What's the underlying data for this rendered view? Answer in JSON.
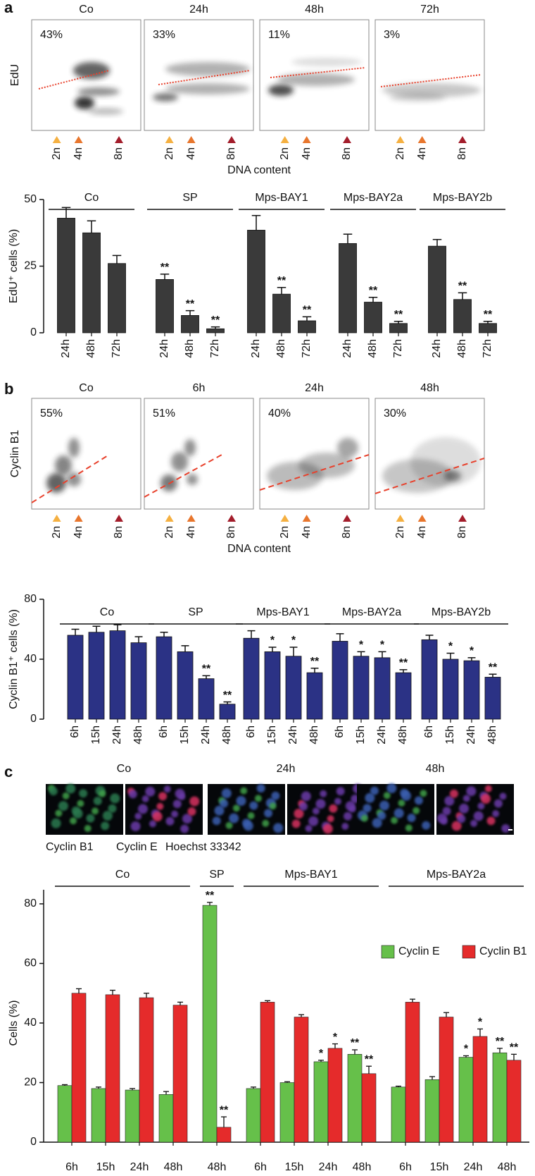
{
  "panel_labels": [
    "a",
    "b",
    "c"
  ],
  "micrographs": {
    "titles": [
      "Co",
      "24h",
      "48h"
    ],
    "legend": [
      {
        "text": "Cyclin B1",
        "color": "#e8262d"
      },
      {
        "text": "Cyclin E",
        "color": "#3aa635"
      },
      {
        "text": "Hoechst 33342",
        "color": "#4a6fd8"
      }
    ]
  },
  "chart_data": [
    {
      "type": "flow",
      "titles": [
        "Co",
        "24h",
        "48h",
        "72h"
      ],
      "annotations": [
        "43%",
        "33%",
        "11%",
        "3%"
      ],
      "ylabel": "EdU",
      "xticks": [
        "2n",
        "4n",
        "8n"
      ],
      "xlabel": "DNA content"
    },
    {
      "type": "bar",
      "ylabel": "EdU⁺ cells (%)",
      "color": "#3a3a3a",
      "ylim": [
        0,
        50
      ],
      "yticks": [
        0,
        25,
        50
      ],
      "groups": [
        {
          "name": "Co",
          "categories": [
            "24h",
            "48h",
            "72h"
          ],
          "values": [
            43,
            37.5,
            26
          ],
          "errors": [
            4,
            4.5,
            3
          ],
          "significance": [
            null,
            null,
            null
          ]
        },
        {
          "name": "SP",
          "categories": [
            "24h",
            "48h",
            "72h"
          ],
          "values": [
            20,
            6.5,
            1.5
          ],
          "errors": [
            2,
            1.8,
            0.7
          ],
          "significance": [
            "**",
            "**",
            "**"
          ]
        },
        {
          "name": "Mps-BAY1",
          "categories": [
            "24h",
            "48h",
            "72h"
          ],
          "values": [
            38.5,
            14.5,
            4.5
          ],
          "errors": [
            5.5,
            2.5,
            1.5
          ],
          "significance": [
            null,
            "**",
            "**"
          ]
        },
        {
          "name": "Mps-BAY2a",
          "categories": [
            "24h",
            "48h",
            "72h"
          ],
          "values": [
            33.5,
            11.5,
            3.5
          ],
          "errors": [
            3.5,
            1.8,
            0.8
          ],
          "significance": [
            null,
            "**",
            "**"
          ]
        },
        {
          "name": "Mps-BAY2b",
          "categories": [
            "24h",
            "48h",
            "72h"
          ],
          "values": [
            32.5,
            12.5,
            3.5
          ],
          "errors": [
            2.5,
            2.5,
            0.8
          ],
          "significance": [
            null,
            "**",
            "**"
          ]
        }
      ]
    },
    {
      "type": "flow",
      "titles": [
        "Co",
        "6h",
        "24h",
        "48h"
      ],
      "annotations": [
        "55%",
        "51%",
        "40%",
        "30%"
      ],
      "ylabel": "Cyclin B1",
      "xticks": [
        "2n",
        "4n",
        "8n"
      ],
      "xlabel": "DNA content"
    },
    {
      "type": "bar",
      "ylabel": "Cyclin B1⁺ cells (%)",
      "color": "#2b3285",
      "ylim": [
        0,
        80
      ],
      "yticks": [
        0,
        40,
        80
      ],
      "groups": [
        {
          "name": "Co",
          "categories": [
            "6h",
            "15h",
            "24h",
            "48h"
          ],
          "values": [
            56,
            58,
            59,
            51
          ],
          "errors": [
            4,
            4,
            4,
            4
          ],
          "significance": [
            null,
            null,
            null,
            null
          ]
        },
        {
          "name": "SP",
          "categories": [
            "6h",
            "15h",
            "24h",
            "48h"
          ],
          "values": [
            55,
            45,
            27,
            10
          ],
          "errors": [
            3,
            4,
            2,
            1.5
          ],
          "significance": [
            null,
            null,
            "**",
            "**"
          ]
        },
        {
          "name": "Mps-BAY1",
          "categories": [
            "6h",
            "15h",
            "24h",
            "48h"
          ],
          "values": [
            54,
            45,
            42,
            31
          ],
          "errors": [
            5,
            3,
            6,
            3
          ],
          "significance": [
            null,
            "*",
            "*",
            "**"
          ]
        },
        {
          "name": "Mps-BAY2a",
          "categories": [
            "6h",
            "15h",
            "24h",
            "48h"
          ],
          "values": [
            52,
            42,
            41,
            31
          ],
          "errors": [
            5,
            3,
            4,
            2
          ],
          "significance": [
            null,
            "*",
            "*",
            "**"
          ]
        },
        {
          "name": "Mps-BAY2b",
          "categories": [
            "6h",
            "15h",
            "24h",
            "48h"
          ],
          "values": [
            53,
            40,
            39,
            28
          ],
          "errors": [
            3,
            4,
            2,
            2
          ],
          "significance": [
            null,
            "*",
            "*",
            "**"
          ]
        }
      ]
    },
    {
      "type": "grouped_bar",
      "ylabel": "Cells (%)",
      "ylim": [
        0,
        80
      ],
      "yticks": [
        0,
        20,
        40,
        60,
        80
      ],
      "groups": [
        {
          "name": "Co",
          "categories": [
            "6h",
            "15h",
            "24h",
            "48h"
          ]
        },
        {
          "name": "SP",
          "categories": [
            "48h"
          ]
        },
        {
          "name": "Mps-BAY1",
          "categories": [
            "6h",
            "15h",
            "24h",
            "48h"
          ]
        },
        {
          "name": "Mps-BAY2a",
          "categories": [
            "6h",
            "15h",
            "24h",
            "48h"
          ]
        }
      ],
      "series": [
        {
          "name": "Cyclin E",
          "color": "#66c04a",
          "values": [
            19,
            18,
            17.5,
            16,
            79.5,
            18,
            20,
            27,
            29.5,
            18.5,
            21,
            28.5,
            30
          ],
          "errors": [
            0.3,
            0.5,
            0.5,
            1,
            1,
            0.5,
            0.3,
            0.5,
            1.5,
            0.3,
            1,
            0.5,
            1.5
          ],
          "significance": [
            null,
            null,
            null,
            null,
            "**",
            null,
            null,
            "*",
            "**",
            null,
            null,
            "*",
            "**"
          ]
        },
        {
          "name": "Cyclin B1",
          "color": "#e52b2b",
          "values": [
            50,
            49.5,
            48.5,
            46,
            5,
            47,
            42,
            31.5,
            23,
            47,
            42,
            35.5,
            27.5
          ],
          "errors": [
            1.5,
            1.5,
            1.5,
            1,
            3.5,
            0.5,
            0.8,
            1.5,
            2.5,
            1,
            1.5,
            2.5,
            2
          ],
          "significance": [
            null,
            null,
            null,
            null,
            "**",
            null,
            null,
            "*",
            "**",
            null,
            null,
            "*",
            "**"
          ]
        }
      ]
    }
  ]
}
